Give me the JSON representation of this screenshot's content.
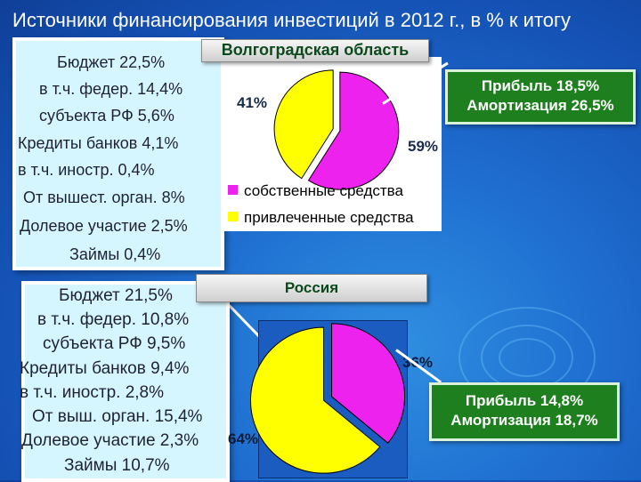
{
  "title": "Источники финансирования инвестиций в 2012 г., в % к итогу",
  "volgograd": {
    "banner": "Волгоградская область",
    "left_lines": [
      "Бюджет 22,5%",
      "в т.ч. федер. 14,4%",
      "субъекта РФ 5,6%",
      "Кредиты банков 4,1%",
      "в т.ч. иностр. 0,4%",
      "От вышест. орган. 8%",
      "Долевое участие 2,5%",
      "Займы 0,4%"
    ],
    "right_lines": [
      "Прибыль 18,5%",
      "Амортизация 26,5%"
    ],
    "pct_attracted": "41%",
    "pct_own": "59%",
    "legend": [
      "собственные средства",
      "привлеченные средства"
    ]
  },
  "russia": {
    "banner": "Россия",
    "left_lines": [
      "Бюджет 21,5%",
      "в т.ч. федер. 10,8%",
      "субъекта РФ 9,5%",
      "Кредиты банков 9,4%",
      "в т.ч. иностр. 2,8%",
      "От выш. орган. 15,4%",
      "Долевое участие 2,3%",
      "Займы 10,7%"
    ],
    "right_lines": [
      "Прибыль 14,8%",
      "Амортизация 18,7%"
    ],
    "pct_own": "36%",
    "pct_attracted": "64%"
  },
  "colors": {
    "own": "#ee22ee",
    "attracted": "#ffff00",
    "accent_green": "#1e7f1e"
  },
  "chart_data": [
    {
      "type": "pie",
      "title": "Волгоградская область",
      "categories": [
        "собственные средства",
        "привлеченные средства"
      ],
      "values": [
        59,
        41
      ],
      "legend_position": "bottom"
    },
    {
      "type": "pie",
      "title": "Россия",
      "categories": [
        "собственные средства",
        "привлеченные средства"
      ],
      "values": [
        36,
        64
      ]
    }
  ]
}
